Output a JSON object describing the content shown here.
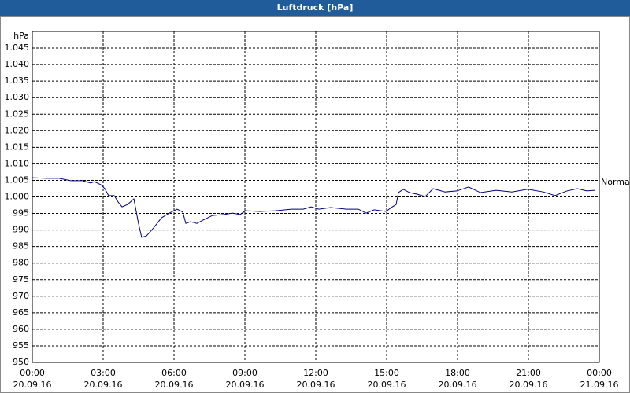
{
  "chart_data": {
    "type": "line",
    "title": "Luftdruck [hPa]",
    "ylabel": "hPa",
    "xlim": [
      0,
      24
    ],
    "ylim": [
      950,
      1050
    ],
    "xticks": [
      {
        "value": 0,
        "label": "00:00\n20.09.16"
      },
      {
        "value": 3,
        "label": "03:00\n20.09.16"
      },
      {
        "value": 6,
        "label": "06:00\n20.09.16"
      },
      {
        "value": 9,
        "label": "09:00\n20.09.16"
      },
      {
        "value": 12,
        "label": "12:00\n20.09.16"
      },
      {
        "value": 15,
        "label": "15:00\n20.09.16"
      },
      {
        "value": 18,
        "label": "18:00\n20.09.16"
      },
      {
        "value": 21,
        "label": "21:00\n20.09.16"
      },
      {
        "value": 24,
        "label": "00:00\n21.09.16"
      }
    ],
    "yticks": [
      950,
      955,
      960,
      965,
      970,
      975,
      980,
      985,
      990,
      995,
      {
        "value": 1000,
        "label": "1.000"
      },
      {
        "value": 1005,
        "label": "1.005"
      },
      {
        "value": 1010,
        "label": "1.010"
      },
      {
        "value": 1015,
        "label": "1.015"
      },
      {
        "value": 1020,
        "label": "1.020"
      },
      {
        "value": 1025,
        "label": "1.025"
      },
      {
        "value": 1030,
        "label": "1.030"
      },
      {
        "value": 1035,
        "label": "1.035"
      },
      {
        "value": 1040,
        "label": "1.040"
      },
      {
        "value": 1045,
        "label": "1.045"
      }
    ],
    "grid": true,
    "annotation": {
      "text": "Normal",
      "value": 1004.4
    },
    "x": [
      0,
      0.63,
      1.13,
      1.63,
      2.13,
      2.47,
      2.63,
      2.9,
      3.07,
      3.23,
      3.47,
      3.63,
      3.8,
      4.03,
      4.3,
      4.5,
      4.63,
      4.83,
      5.13,
      5.47,
      5.8,
      6.13,
      6.37,
      6.5,
      6.7,
      6.97,
      7.23,
      7.63,
      8.13,
      8.47,
      8.8,
      9.03,
      9.63,
      10.3,
      10.97,
      11.47,
      11.8,
      12.13,
      12.63,
      13.3,
      13.8,
      14.13,
      14.47,
      14.97,
      15.2,
      15.4,
      15.5,
      15.7,
      15.97,
      16.3,
      16.63,
      16.97,
      17.47,
      17.97,
      18.47,
      18.97,
      19.63,
      20.3,
      20.97,
      21.63,
      22.13,
      22.63,
      23.07,
      23.47,
      23.8
    ],
    "series": [
      {
        "name": "Luftdruck",
        "color": "#000080",
        "values": [
          1005.8,
          1005.6,
          1005.6,
          1004.9,
          1004.9,
          1004.2,
          1004.6,
          1003.7,
          1002.5,
          1000.4,
          1000.4,
          998.5,
          997.0,
          997.7,
          999.4,
          991.8,
          987.8,
          988.2,
          990.6,
          993.7,
          995.1,
          996.3,
          995.4,
          992.0,
          992.5,
          992.0,
          993.0,
          994.4,
          994.7,
          995.1,
          994.7,
          995.8,
          995.6,
          995.8,
          996.3,
          996.3,
          997.0,
          996.3,
          996.8,
          996.3,
          996.3,
          995.1,
          996.1,
          995.6,
          996.8,
          997.7,
          1001.3,
          1002.3,
          1001.3,
          1000.8,
          1000.1,
          1002.5,
          1001.5,
          1001.8,
          1003.0,
          1001.3,
          1002.0,
          1001.5,
          1002.3,
          1001.5,
          1000.4,
          1001.8,
          1002.5,
          1001.8,
          1002.0
        ]
      }
    ]
  }
}
